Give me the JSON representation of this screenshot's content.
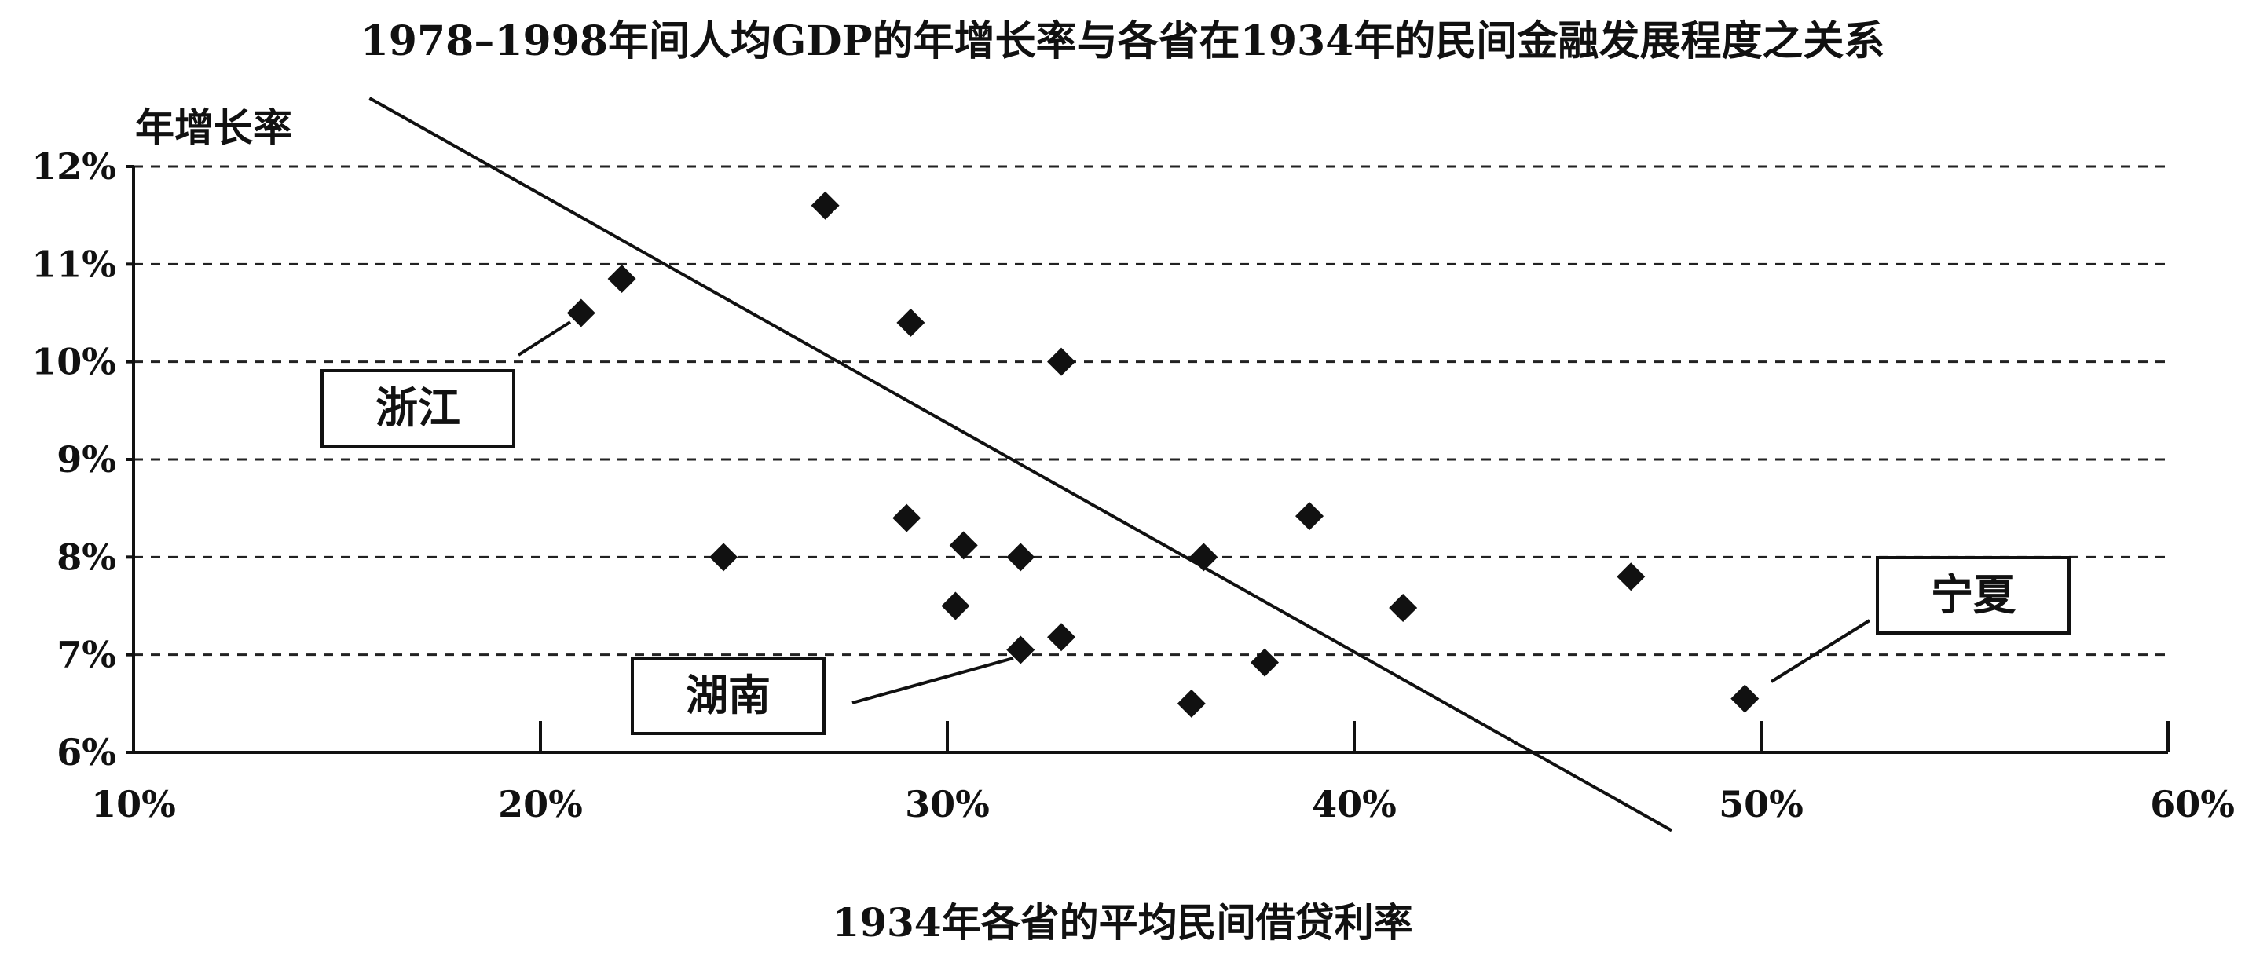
{
  "chart_data": {
    "type": "scatter",
    "title": "1978–1998年间人均GDP的年增长率与各省在1934年的民间金融发展程度之关系",
    "xlabel": "1934年各省的平均民间借贷利率",
    "ylabel": "年增长率",
    "xlim": [
      10,
      60
    ],
    "ylim": [
      6,
      12
    ],
    "x_ticks": [
      {
        "value": 10,
        "label": "10%"
      },
      {
        "value": 20,
        "label": "20%"
      },
      {
        "value": 30,
        "label": "30%"
      },
      {
        "value": 40,
        "label": "40%"
      },
      {
        "value": 50,
        "label": "50%"
      },
      {
        "value": 60,
        "label": "60%"
      }
    ],
    "y_ticks": [
      {
        "value": 6,
        "label": "6%"
      },
      {
        "value": 7,
        "label": "7%"
      },
      {
        "value": 8,
        "label": "8%"
      },
      {
        "value": 9,
        "label": "9%"
      },
      {
        "value": 10,
        "label": "10%"
      },
      {
        "value": 11,
        "label": "11%"
      },
      {
        "value": 12,
        "label": "12%"
      }
    ],
    "grid": {
      "horizontal_dashed": true
    },
    "marker": "diamond",
    "points": [
      {
        "x": 21.0,
        "y": 10.5
      },
      {
        "x": 22.0,
        "y": 10.85
      },
      {
        "x": 24.5,
        "y": 8.0
      },
      {
        "x": 27.0,
        "y": 11.6
      },
      {
        "x": 29.0,
        "y": 8.4
      },
      {
        "x": 29.1,
        "y": 10.4
      },
      {
        "x": 30.2,
        "y": 7.5
      },
      {
        "x": 30.4,
        "y": 8.12
      },
      {
        "x": 31.8,
        "y": 7.05
      },
      {
        "x": 31.8,
        "y": 8.0
      },
      {
        "x": 32.8,
        "y": 7.18
      },
      {
        "x": 32.8,
        "y": 10.0
      },
      {
        "x": 36.0,
        "y": 6.5
      },
      {
        "x": 36.3,
        "y": 8.0
      },
      {
        "x": 37.8,
        "y": 6.92
      },
      {
        "x": 38.9,
        "y": 8.42
      },
      {
        "x": 41.2,
        "y": 7.48
      },
      {
        "x": 46.8,
        "y": 7.8
      },
      {
        "x": 49.6,
        "y": 6.55
      }
    ],
    "trend_line": {
      "x1": 15.8,
      "y1": 12.7,
      "x2": 47.8,
      "y2": 5.2
    },
    "annotations": [
      {
        "text": "浙江",
        "x": 21.0,
        "y": 10.5
      },
      {
        "text": "湖南",
        "x": 31.8,
        "y": 7.05
      },
      {
        "text": "宁夏",
        "x": 49.6,
        "y": 6.55
      }
    ]
  }
}
